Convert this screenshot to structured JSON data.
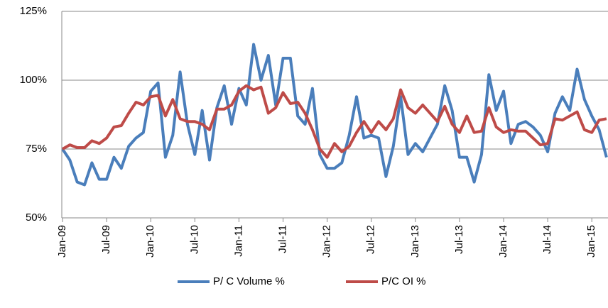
{
  "chart_data": {
    "type": "line",
    "categories": [
      "Jan-09",
      null,
      null,
      null,
      null,
      null,
      "Jul-09",
      null,
      null,
      null,
      null,
      null,
      "Jan-10",
      null,
      null,
      null,
      null,
      null,
      "Jul-10",
      null,
      null,
      null,
      null,
      null,
      "Jan-11",
      null,
      null,
      null,
      null,
      null,
      "Jul-11",
      null,
      null,
      null,
      null,
      null,
      "Jan-12",
      null,
      null,
      null,
      null,
      null,
      "Jul-12",
      null,
      null,
      null,
      null,
      null,
      "Jan-13",
      null,
      null,
      null,
      null,
      null,
      "Jul-13",
      null,
      null,
      null,
      null,
      null,
      "Jan-14",
      null,
      null,
      null,
      null,
      null,
      "Jul-14",
      null,
      null,
      null,
      null,
      null,
      "Jan-15",
      null,
      null
    ],
    "series": [
      {
        "name": "P/ C Volume %",
        "color": "#4a7ebb",
        "values": [
          75,
          71,
          63,
          62,
          70,
          64,
          64,
          72,
          68,
          76,
          79,
          81,
          96,
          99,
          72,
          80,
          103,
          84,
          73,
          89,
          71,
          90,
          98,
          84,
          97,
          91,
          113,
          100,
          109,
          91,
          108,
          108,
          87,
          84,
          97,
          73,
          68,
          68,
          70,
          80,
          94,
          79,
          80,
          79,
          65,
          76,
          94,
          73,
          77,
          74,
          79,
          84,
          98,
          89,
          72,
          72,
          63,
          73,
          102,
          89,
          96,
          77,
          84,
          85,
          83,
          80,
          74,
          88,
          94,
          89,
          104,
          93,
          87,
          82,
          72
        ]
      },
      {
        "name": "P/C OI %",
        "color": "#be4b48",
        "values": [
          75,
          76.5,
          75.5,
          75.5,
          78,
          77,
          79,
          83,
          83.5,
          88,
          92,
          91,
          94,
          94.5,
          87,
          93,
          86,
          85,
          85,
          84,
          82,
          89.5,
          89.5,
          91,
          96,
          98,
          96.5,
          97.5,
          88,
          90,
          95.5,
          91.5,
          92,
          88,
          82,
          75,
          72,
          77,
          74,
          76,
          81,
          85,
          81,
          85,
          82,
          86,
          96.5,
          90,
          88,
          91,
          88,
          85,
          90.5,
          84,
          81,
          87,
          81,
          81.5,
          90,
          83,
          81,
          82,
          81.5,
          81.5,
          79,
          76.5,
          77,
          86,
          85.5,
          87,
          88.5,
          82,
          81,
          85.5,
          86
        ]
      }
    ],
    "ylim": [
      50,
      125
    ],
    "yticks": [
      {
        "value": 50,
        "label": "50%"
      },
      {
        "value": 75,
        "label": "75%"
      },
      {
        "value": 100,
        "label": "100%"
      },
      {
        "value": 125,
        "label": "125%"
      }
    ],
    "grid": true,
    "legend": "bottom"
  }
}
